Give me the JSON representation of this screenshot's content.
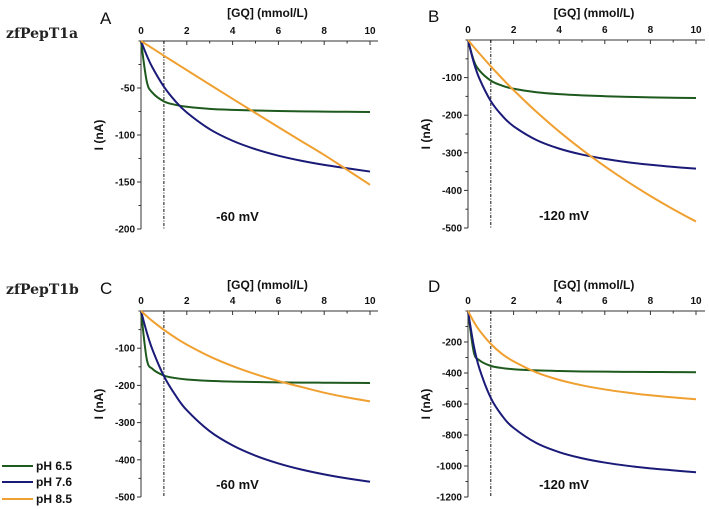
{
  "figure": {
    "row_labels": [
      "zfPepT1a",
      "zfPepT1b"
    ],
    "legend": [
      {
        "label": "pH 6.5",
        "color": "#1e5a1e"
      },
      {
        "label": "pH 7.6",
        "color": "#1a1a78"
      },
      {
        "label": "pH 8.5",
        "color": "#f0a030"
      }
    ]
  },
  "chart_data": [
    {
      "type": "line",
      "panel": "A",
      "row_label": "zfPepT1a",
      "title": "-60 mV",
      "xlabel": "[GQ] (mmol/L)",
      "ylabel": "I (nA)",
      "xlim": [
        0,
        10
      ],
      "ylim": [
        -200,
        0
      ],
      "xticks": [
        0,
        2,
        4,
        6,
        8,
        10
      ],
      "yticks": [
        -50,
        -100,
        -150,
        -200
      ],
      "x_minor_step": 1,
      "y_minor_step": 25,
      "reference_line_x": 1,
      "x": [
        0,
        0.25,
        0.5,
        1,
        1.5,
        2,
        3,
        4,
        5,
        6,
        7,
        8,
        9,
        10
      ],
      "series": [
        {
          "name": "pH 6.5",
          "values": [
            0,
            -42.8,
            -55.0,
            -64.2,
            -67.9,
            -70.0,
            -72.2,
            -73.3,
            -74.0,
            -74.5,
            -74.9,
            -75.1,
            -75.3,
            -75.5
          ]
        },
        {
          "name": "pH 7.6",
          "values": [
            0,
            -15.3,
            -28.2,
            -48.6,
            -64.0,
            -76.1,
            -93.8,
            -106.1,
            -115.1,
            -122.0,
            -127.4,
            -131.8,
            -135.4,
            -138.9
          ]
        },
        {
          "name": "pH 8.5",
          "values": [
            0,
            -3.9,
            -7.8,
            -15.6,
            -23.3,
            -31.0,
            -46.3,
            -61.5,
            -76.6,
            -91.6,
            -106.5,
            -121.2,
            -137.0,
            -153.0
          ]
        }
      ]
    },
    {
      "type": "line",
      "panel": "B",
      "row_label": "zfPepT1a",
      "title": "-120 mV",
      "xlabel": "[GQ] (mmol/L)",
      "ylabel": "I (nA)",
      "xlim": [
        0,
        10
      ],
      "ylim": [
        -500,
        0
      ],
      "xticks": [
        0,
        2,
        4,
        6,
        8,
        10
      ],
      "yticks": [
        -100,
        -200,
        -300,
        -400,
        -500
      ],
      "x_minor_step": 1,
      "y_minor_step": 50,
      "reference_line_x": 1,
      "x": [
        0,
        0.25,
        0.5,
        1,
        1.5,
        2,
        3,
        4,
        5,
        6,
        7,
        8,
        9,
        10
      ],
      "series": [
        {
          "name": "pH 6.5",
          "values": [
            0,
            -54.0,
            -81.0,
            -108.0,
            -121.5,
            -129.6,
            -138.9,
            -144.0,
            -147.3,
            -149.5,
            -151.2,
            -152.5,
            -153.5,
            -154.3
          ]
        },
        {
          "name": "pH 7.6",
          "values": [
            0,
            -59.1,
            -102.6,
            -162.5,
            -201.4,
            -229.4,
            -265.9,
            -288.9,
            -304.7,
            -316.2,
            -325.0,
            -331.9,
            -337.5,
            -342.1
          ]
        },
        {
          "name": "pH 8.5",
          "values": [
            0,
            -18.2,
            -35.9,
            -70.0,
            -102.4,
            -133.3,
            -190.9,
            -243.5,
            -291.7,
            -336.0,
            -376.9,
            -414.8,
            -450.0,
            -482.8
          ]
        }
      ]
    },
    {
      "type": "line",
      "panel": "C",
      "row_label": "zfPepT1b",
      "title": "-60 mV",
      "xlabel": "[GQ] (mmol/L)",
      "ylabel": "I (nA)",
      "xlim": [
        0,
        10
      ],
      "ylim": [
        -500,
        0
      ],
      "xticks": [
        0,
        2,
        4,
        6,
        8,
        10
      ],
      "yticks": [
        -100,
        -200,
        -300,
        -400,
        -500
      ],
      "x_minor_step": 1,
      "y_minor_step": 50,
      "reference_line_x": 1,
      "x": [
        0,
        0.25,
        0.5,
        1,
        1.5,
        2,
        3,
        4,
        5,
        6,
        7,
        8,
        9,
        10
      ],
      "series": [
        {
          "name": "pH 6.5",
          "values": [
            0,
            -128.9,
            -155.6,
            -173.5,
            -180.3,
            -184.0,
            -187.9,
            -189.8,
            -191.0,
            -191.8,
            -192.4,
            -192.8,
            -193.2,
            -193.5
          ]
        },
        {
          "name": "pH 7.6",
          "values": [
            0,
            -57.1,
            -103.7,
            -175.0,
            -226.0,
            -266.7,
            -323.1,
            -361.3,
            -388.9,
            -409.7,
            -426.1,
            -439.2,
            -450.0,
            -459.0
          ]
        },
        {
          "name": "pH 8.5",
          "values": [
            0,
            -13.9,
            -27.0,
            -50.6,
            -71.6,
            -90.3,
            -122.1,
            -148.0,
            -169.8,
            -188.4,
            -204.2,
            -219.6,
            -232.3,
            -242.8
          ]
        }
      ]
    },
    {
      "type": "line",
      "panel": "D",
      "row_label": "zfPepT1b",
      "title": "-120 mV",
      "xlabel": "[GQ] (mmol/L)",
      "ylabel": "I (nA)",
      "xlim": [
        0,
        10
      ],
      "ylim": [
        -1200,
        0
      ],
      "xticks": [
        0,
        2,
        4,
        6,
        8,
        10
      ],
      "yticks": [
        -200,
        -400,
        -600,
        -800,
        -1000,
        -1200
      ],
      "x_minor_step": 1,
      "y_minor_step": 100,
      "reference_line_x": 1,
      "x": [
        0,
        0.25,
        0.5,
        1,
        1.5,
        2,
        3,
        4,
        5,
        6,
        7,
        8,
        9,
        10
      ],
      "series": [
        {
          "name": "pH 6.5",
          "values": [
            0,
            -263.2,
            -317.5,
            -354.0,
            -368.1,
            -375.7,
            -383.3,
            -387.4,
            -390.0,
            -391.5,
            -392.6,
            -393.6,
            -394.2,
            -394.8
          ]
        },
        {
          "name": "pH 7.6",
          "values": [
            0,
            -221.2,
            -370.9,
            -561.0,
            -676.5,
            -754.1,
            -851.8,
            -910.6,
            -949.9,
            -977.8,
            -998.8,
            -1015.1,
            -1028.1,
            -1040.7
          ]
        },
        {
          "name": "pH 8.5",
          "values": [
            0,
            -68.6,
            -124.8,
            -212.1,
            -277.6,
            -325.0,
            -396.2,
            -444.4,
            -479.5,
            -506.0,
            -526.9,
            -543.7,
            -557.5,
            -569.1
          ]
        }
      ]
    }
  ]
}
